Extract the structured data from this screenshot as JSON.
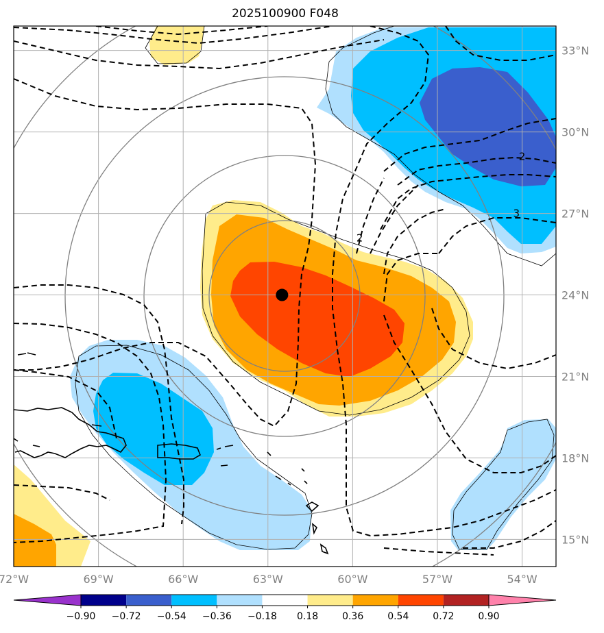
{
  "title": "2025100900 F048",
  "map": {
    "lon_range": [
      -72.0,
      -52.8
    ],
    "lat_range": [
      14.0,
      33.9
    ],
    "gridlines": true,
    "lon_ticks": [
      {
        "value": -72,
        "label": "72°W"
      },
      {
        "value": -69,
        "label": "69°W"
      },
      {
        "value": -66,
        "label": "66°W"
      },
      {
        "value": -63,
        "label": "63°W"
      },
      {
        "value": -60,
        "label": "60°W"
      },
      {
        "value": -57,
        "label": "57°W"
      },
      {
        "value": -54,
        "label": "54°W"
      }
    ],
    "lat_ticks": [
      {
        "value": 15,
        "label": "15°N"
      },
      {
        "value": 18,
        "label": "18°N"
      },
      {
        "value": 21,
        "label": "21°N"
      },
      {
        "value": 24,
        "label": "24°N"
      },
      {
        "value": 27,
        "label": "27°N"
      },
      {
        "value": 30,
        "label": "30°N"
      },
      {
        "value": 33,
        "label": "33°N"
      }
    ],
    "center_marker": {
      "lon": -62.5,
      "lat": 24.0
    },
    "contour_labels": [
      {
        "text": "2",
        "lon": -54.0,
        "lat": 29.1
      },
      {
        "text": "3",
        "lon": -54.2,
        "lat": 27.0
      },
      {
        "text": "2",
        "lon": -59.75,
        "lat": 26.1
      }
    ]
  },
  "colorbar": {
    "labels": [
      "−0.90",
      "−0.72",
      "−0.54",
      "−0.36",
      "−0.18",
      "0.18",
      "0.36",
      "0.54",
      "0.72",
      "0.90"
    ],
    "colors": [
      "#9932cc",
      "#00008b",
      "#3a5fcd",
      "#00bfff",
      "#b0e0fe",
      "#ffffff",
      "#ffec8b",
      "#ffa500",
      "#ff4500",
      "#b22222",
      "#ff82ab"
    ],
    "extend": "both"
  }
}
